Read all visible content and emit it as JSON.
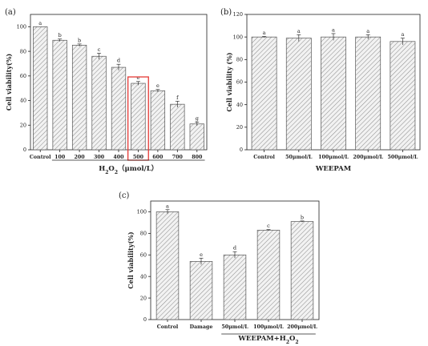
{
  "chart_data": [
    {
      "type": "bar",
      "panel_label": "(a)",
      "ylabel": "Cell viability(%)",
      "xlabel": "H2O2 (μmol/L)",
      "xlabel_parts": {
        "base": "H",
        "sub1": "2",
        "mid": "O",
        "sub2": "2",
        "unit": "（μmol/L）"
      },
      "xlabel_group_categories": [
        "100",
        "200",
        "300",
        "400",
        "500",
        "600",
        "700",
        "800"
      ],
      "categories": [
        "Control",
        "100",
        "200",
        "300",
        "400",
        "500",
        "600",
        "700",
        "800"
      ],
      "values": [
        100,
        89,
        85,
        76,
        67,
        54,
        48,
        37,
        21
      ],
      "errors": [
        0,
        1,
        1,
        2.5,
        2.5,
        1.5,
        1,
        2.5,
        1.5
      ],
      "significance": [
        "a",
        "b",
        "b",
        "c",
        "d",
        "e",
        "e",
        "f",
        "g"
      ],
      "highlight_category": "500",
      "highlight_color": "#e53935",
      "ylim": [
        0,
        110
      ],
      "yticks": [
        0,
        20,
        40,
        60,
        80,
        100
      ]
    },
    {
      "type": "bar",
      "panel_label": "(b)",
      "ylabel": "Cell viability (%)",
      "xlabel": "WEEPAM",
      "categories": [
        "Control",
        "50μmol/L",
        "100μmol/L",
        "200μmol/L",
        "500μmol/L"
      ],
      "values": [
        100,
        99,
        100,
        100,
        96
      ],
      "errors": [
        0.5,
        3,
        3,
        2,
        3
      ],
      "significance": [
        "a",
        "a",
        "a",
        "a",
        "a"
      ],
      "ylim": [
        0,
        120
      ],
      "yticks": [
        0,
        20,
        40,
        60,
        80,
        100,
        120
      ]
    },
    {
      "type": "bar",
      "panel_label": "(c)",
      "ylabel": "Cell viability(%)",
      "xlabel": "WEEPAM+H2O2",
      "xlabel_parts": {
        "base": "WEEPAM+H",
        "sub1": "2",
        "mid": "O",
        "sub2": "2"
      },
      "xlabel_group_categories": [
        "50μmol/L",
        "100μmol/L",
        "200μmol/L"
      ],
      "categories": [
        "Control",
        "Damage",
        "50μmol/L",
        "100μmol/L",
        "200μmol/L"
      ],
      "values": [
        100,
        54,
        60,
        83,
        91
      ],
      "errors": [
        2,
        3,
        3,
        0.5,
        0.5
      ],
      "significance": [
        "a",
        "e",
        "d",
        "c",
        "b"
      ],
      "ylim": [
        0,
        110
      ],
      "yticks": [
        0,
        20,
        40,
        60,
        80,
        100
      ]
    }
  ],
  "colors": {
    "axis": "#222222",
    "bar_fill": "#f2f2f2",
    "hatch": "#8a8a8a",
    "highlight": "#e53935"
  }
}
